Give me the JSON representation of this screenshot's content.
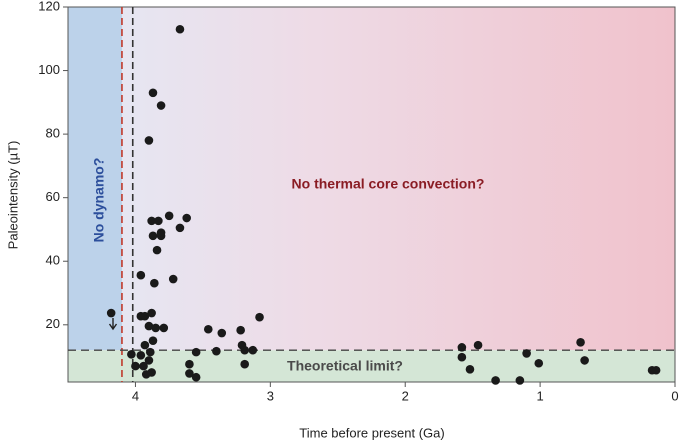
{
  "chart_data": {
    "type": "scatter",
    "xlabel": "Time before present (Ga)",
    "ylabel": "Paleointensity (µT)",
    "annotations": [
      "No dynamo?",
      "No thermal core convection?",
      "Theoretical limit?"
    ],
    "xlim": [
      4.5,
      0
    ],
    "ylim": [
      2,
      120
    ],
    "xticks": [
      4,
      3,
      2,
      1,
      0
    ],
    "yticks": [
      20,
      40,
      60,
      80,
      100,
      120
    ],
    "reference_lines": {
      "x": [
        4.1,
        4.02
      ],
      "x_colors": [
        "#c0392b",
        "#333333"
      ],
      "y": 12
    },
    "color": "#1a1a1a",
    "x": [
      3.67,
      3.87,
      3.81,
      3.9,
      3.88,
      3.83,
      3.75,
      3.62,
      3.67,
      3.87,
      3.81,
      3.81,
      3.84,
      3.96,
      3.72,
      3.86,
      4.18,
      3.96,
      3.93,
      3.88,
      3.9,
      3.85,
      3.79,
      3.87,
      3.93,
      3.89,
      3.96,
      4.03,
      4.0,
      3.9,
      3.94,
      3.88,
      3.92,
      3.6,
      3.6,
      3.55,
      3.55,
      3.46,
      3.36,
      3.4,
      3.22,
      3.21,
      3.19,
      3.19,
      3.13,
      3.08,
      1.58,
      1.58,
      1.46,
      1.52,
      1.33,
      1.15,
      1.1,
      1.01,
      0.7,
      0.67,
      0.17,
      0.14
    ],
    "values": [
      113,
      93,
      89,
      78,
      52.7,
      52.7,
      54.3,
      53.6,
      50.5,
      48,
      49,
      48,
      43.5,
      35.6,
      34.4,
      33.1,
      23.7,
      22.7,
      22.7,
      23.7,
      19.6,
      19,
      19,
      15,
      13.6,
      11.4,
      10.4,
      10.7,
      7,
      8.8,
      7,
      5,
      4.4,
      7.6,
      4.7,
      3.5,
      11.4,
      18.6,
      17.4,
      11.7,
      18.3,
      13.6,
      12,
      7.6,
      12,
      22.4,
      12.9,
      9.8,
      13.6,
      6,
      2.5,
      2.5,
      11,
      7.9,
      14.5,
      8.8,
      5.7,
      5.7
    ]
  }
}
